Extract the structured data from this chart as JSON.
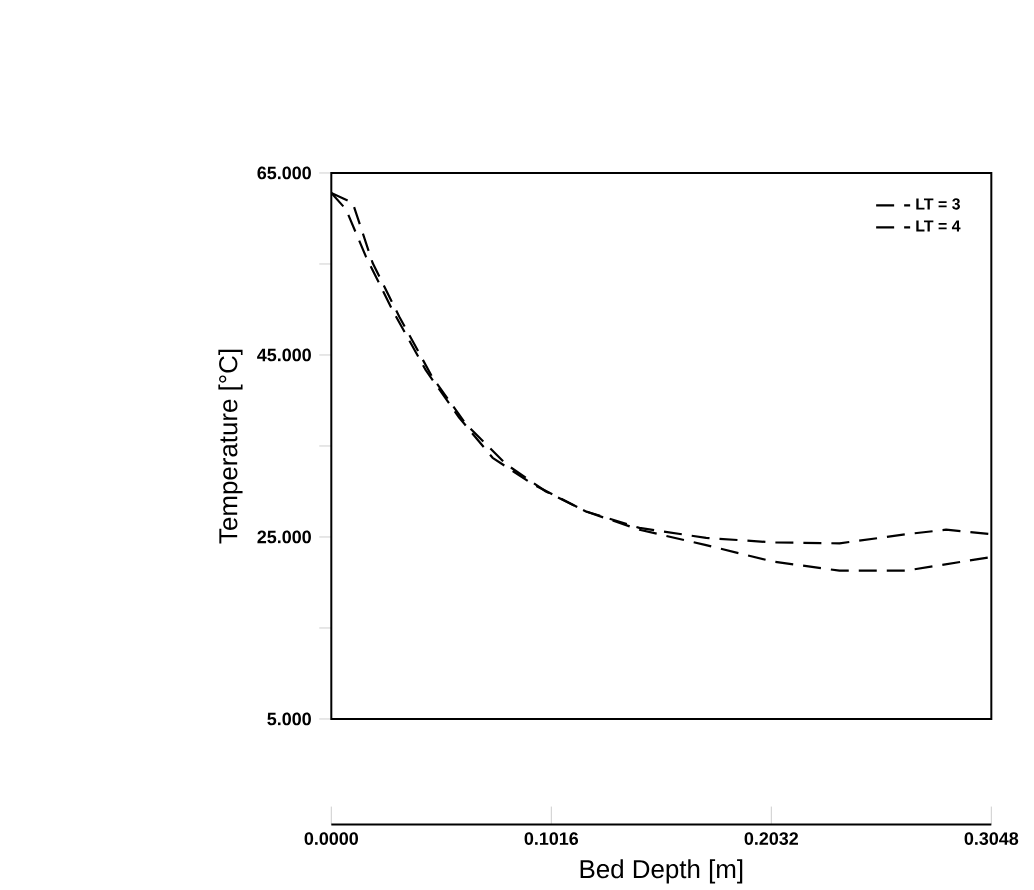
{
  "chart_data": {
    "type": "line",
    "xlabel": "Bed Depth [m]",
    "ylabel": "Temperature [°C]",
    "x": [
      0.0,
      0.0099,
      0.0191,
      0.0314,
      0.0468,
      0.0622,
      0.0807,
      0.0991,
      0.1176,
      0.1423,
      0.1731,
      0.2039,
      0.2347,
      0.2654,
      0.2839,
      0.3048
    ],
    "xlim": [
      0,
      0.3048
    ],
    "xticks": [
      {
        "value": 0,
        "label": "0.0000"
      },
      0.1016,
      0.2032,
      0.3048
    ],
    "ylim": [
      5,
      65
    ],
    "yticks": [
      {
        "value": 5,
        "label": "5.000"
      },
      {
        "value": 15,
        "label": null
      },
      {
        "value": 25,
        "label": "25.000"
      },
      {
        "value": 35,
        "label": null
      },
      {
        "value": 45,
        "label": "45.000"
      },
      {
        "value": 55,
        "label": null
      },
      {
        "value": 65,
        "label": "65.000"
      }
    ],
    "legend": "top right",
    "series": [
      {
        "name": "LT = 3",
        "color": "#000000",
        "line_style": "dashed",
        "values": [
          62.8,
          61.7,
          55.1,
          49.2,
          42.5,
          37.4,
          33.0,
          30.0,
          27.8,
          26.0,
          24.9,
          24.4,
          24.3,
          25.3,
          25.8,
          25.3
        ]
      },
      {
        "name": "LT = 4",
        "color": "#000000",
        "line_style": "dashed",
        "x": [
          0.0,
          0.0068,
          0.016,
          0.0283,
          0.0437,
          0.0591,
          0.0745,
          0.093,
          0.1176,
          0.1423,
          0.1731,
          0.2039,
          0.2347,
          0.2654,
          0.3048
        ],
        "values": [
          62.8,
          61.0,
          55.8,
          49.9,
          43.3,
          38.1,
          33.7,
          30.8,
          27.8,
          25.8,
          24.1,
          22.3,
          21.3,
          21.3,
          22.8
        ]
      }
    ]
  }
}
